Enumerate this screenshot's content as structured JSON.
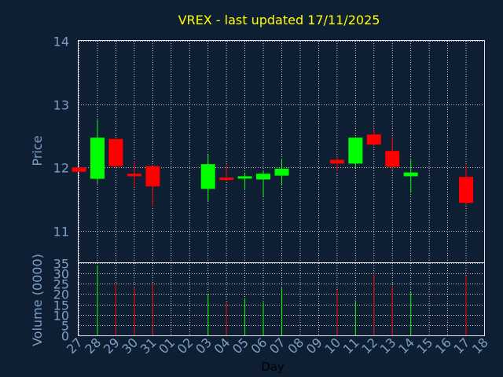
{
  "chart_data": {
    "type": "candlestick",
    "title": "VREX - last updated 17/11/2025",
    "xlabel": "Day",
    "price_panel": {
      "ylabel": "Price",
      "ylim": [
        10.5,
        14
      ],
      "yticks": [
        11,
        12,
        13,
        14
      ],
      "grid": true
    },
    "volume_panel": {
      "ylabel": "Volume (0000)",
      "ylim": [
        0,
        35
      ],
      "yticks": [
        0,
        5,
        10,
        15,
        20,
        25,
        30,
        35
      ],
      "grid": true
    },
    "x_tick_labels": [
      "27",
      "28",
      "29",
      "30",
      "31",
      "01",
      "02",
      "03",
      "04",
      "05",
      "06",
      "07",
      "08",
      "09",
      "10",
      "11",
      "12",
      "13",
      "14",
      "15",
      "16",
      "17",
      "18"
    ],
    "candles": [
      {
        "day": "27",
        "open": 12.0,
        "close": 11.93,
        "high": 12.0,
        "low": 11.92,
        "volume": 0
      },
      {
        "day": "28",
        "open": 11.82,
        "close": 12.47,
        "high": 12.75,
        "low": 11.74,
        "volume": 34
      },
      {
        "day": "29",
        "open": 12.45,
        "close": 12.02,
        "high": 12.45,
        "low": 11.98,
        "volume": 25
      },
      {
        "day": "30",
        "open": 11.9,
        "close": 11.86,
        "high": 12.1,
        "low": 11.7,
        "volume": 23
      },
      {
        "day": "31",
        "open": 12.02,
        "close": 11.7,
        "high": 12.02,
        "low": 11.38,
        "volume": 25
      },
      {
        "day": "03",
        "open": 11.66,
        "close": 12.05,
        "high": 12.2,
        "low": 11.46,
        "volume": 20
      },
      {
        "day": "04",
        "open": 11.84,
        "close": 11.81,
        "high": 12.05,
        "low": 11.78,
        "volume": 16
      },
      {
        "day": "05",
        "open": 11.85,
        "close": 11.86,
        "high": 11.92,
        "low": 11.64,
        "volume": 18
      },
      {
        "day": "06",
        "open": 11.81,
        "close": 11.9,
        "high": 11.95,
        "low": 11.54,
        "volume": 16
      },
      {
        "day": "07",
        "open": 11.87,
        "close": 11.98,
        "high": 12.14,
        "low": 11.73,
        "volume": 23
      },
      {
        "day": "10",
        "open": 12.12,
        "close": 12.06,
        "high": 12.17,
        "low": 11.94,
        "volume": 22
      },
      {
        "day": "11",
        "open": 12.06,
        "close": 12.47,
        "high": 12.47,
        "low": 11.99,
        "volume": 17
      },
      {
        "day": "12",
        "open": 12.52,
        "close": 12.36,
        "high": 12.6,
        "low": 12.34,
        "volume": 30
      },
      {
        "day": "13",
        "open": 12.26,
        "close": 12.01,
        "high": 12.48,
        "low": 11.95,
        "volume": 24
      },
      {
        "day": "14",
        "open": 11.86,
        "close": 11.92,
        "high": 12.12,
        "low": 11.6,
        "volume": 21
      },
      {
        "day": "17",
        "open": 11.85,
        "close": 11.44,
        "high": 12.04,
        "low": 11.4,
        "volume": 29
      }
    ],
    "colors": {
      "background": "#0f1f33",
      "up": "#00ff00",
      "down": "#ff0000",
      "grid": "#ffffff",
      "frame": "#e6e6e6",
      "tick_label": "#7f9fc2",
      "title": "#ffff00",
      "day_label": "#000000"
    }
  }
}
